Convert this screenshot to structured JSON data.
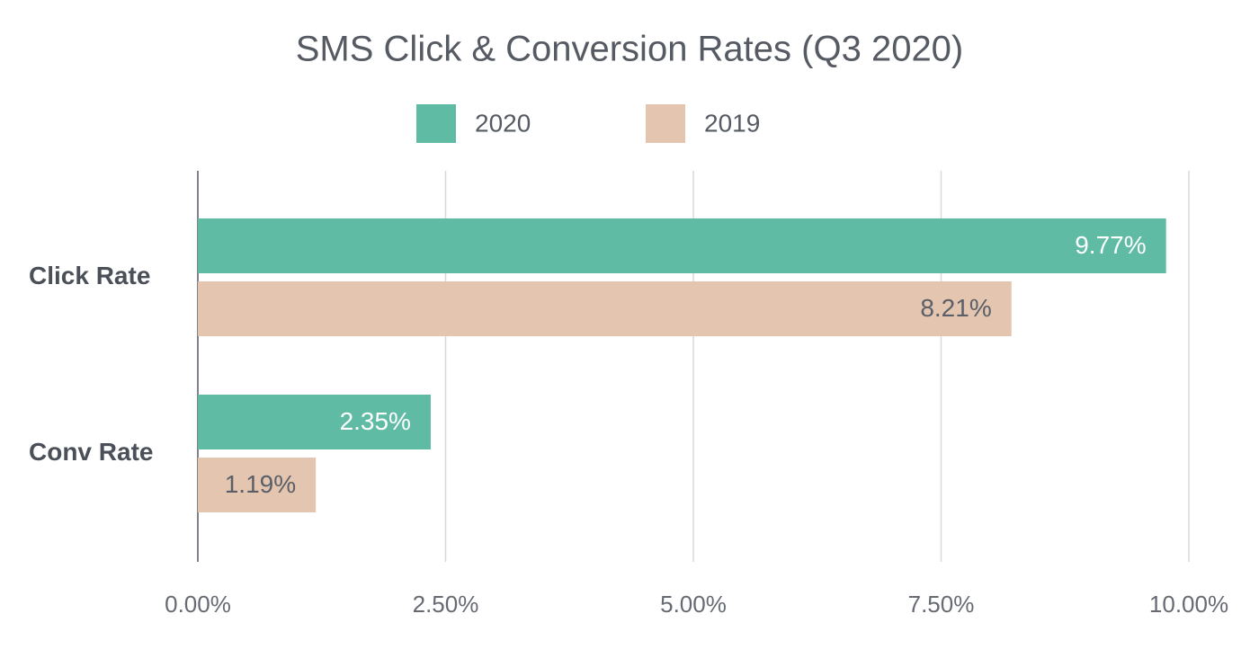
{
  "chart_data": {
    "type": "hbar",
    "title": "SMS Click & Conversion Rates (Q3 2020)",
    "categories": [
      "Click Rate",
      "Conv Rate"
    ],
    "series": [
      {
        "name": "2020",
        "color": "#5fbba4",
        "values": [
          9.77,
          2.35
        ],
        "value_labels": [
          "9.77%",
          "2.35%"
        ],
        "label_color": "#ffffff"
      },
      {
        "name": "2019",
        "color": "#e4c6b0",
        "values": [
          8.21,
          1.19
        ],
        "value_labels": [
          "8.21%",
          "1.19%"
        ],
        "label_color": "#5a5f68"
      }
    ],
    "xlim": [
      0,
      10
    ],
    "xticks": [
      {
        "value": 0,
        "label": "0.00%"
      },
      {
        "value": 2.5,
        "label": "2.50%"
      },
      {
        "value": 5,
        "label": "5.00%"
      },
      {
        "value": 7.5,
        "label": "7.50%"
      },
      {
        "value": 10,
        "label": "10.00%"
      }
    ],
    "grid": true,
    "legend": "top"
  }
}
